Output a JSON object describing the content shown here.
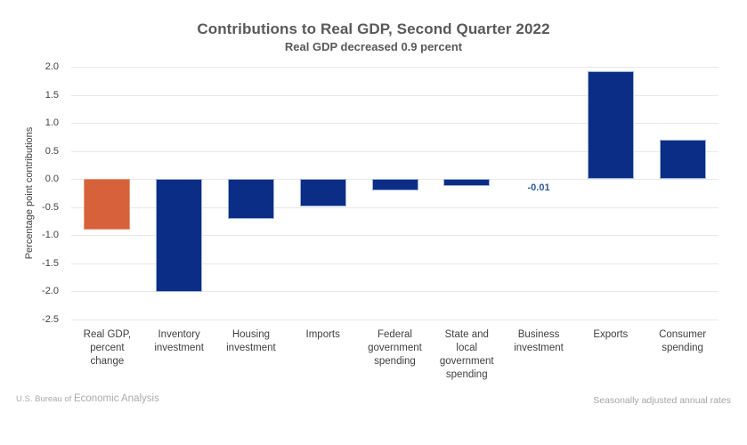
{
  "chart_data": {
    "type": "bar",
    "title": "Contributions to Real GDP, Second Quarter 2022",
    "subtitle": "Real GDP decreased 0.9 percent",
    "ylabel": "Percentage point contributions",
    "xlabel": "",
    "ylim": [
      -2.5,
      2.0
    ],
    "ytick_step": 0.5,
    "yticks": [
      "2.0",
      "1.5",
      "1.0",
      "0.5",
      "0.0",
      "-0.5",
      "-1.0",
      "-1.5",
      "-2.0",
      "-2.5"
    ],
    "grid": true,
    "legend": false,
    "categories": [
      "Real GDP, percent change",
      "Inventory investment",
      "Housing investment",
      "Imports",
      "Federal government spending",
      "State and local government spending",
      "Business investment",
      "Exports",
      "Consumer spending"
    ],
    "category_lines": [
      [
        "Real GDP,",
        "percent",
        "change"
      ],
      [
        "Inventory",
        "investment"
      ],
      [
        "Housing",
        "investment"
      ],
      [
        "Imports"
      ],
      [
        "Federal",
        "government",
        "spending"
      ],
      [
        "State and",
        "local",
        "government",
        "spending"
      ],
      [
        "Business",
        "investment"
      ],
      [
        "Exports"
      ],
      [
        "Consumer",
        "spending"
      ]
    ],
    "values": [
      -0.9,
      -2.01,
      -0.71,
      -0.49,
      -0.2,
      -0.13,
      -0.01,
      1.92,
      0.7
    ],
    "value_labels": [
      "",
      "",
      "",
      "",
      "",
      "",
      "-0.01",
      "",
      ""
    ],
    "highlight_index": 0,
    "colors": {
      "highlight": "#D7613A",
      "default": "#0B2D85",
      "highlight_edge": "#E59B7C",
      "default_edge": "#9FB3DD",
      "value_label": "#2E5B9E",
      "gridline": "#E8E8E8",
      "title_text": "#595959",
      "axis_text": "#404040"
    }
  },
  "footer": {
    "left_prefix": "U.S. Bureau of",
    "left_brand": "Economic Analysis",
    "right": "Seasonally adjusted annual rates"
  }
}
